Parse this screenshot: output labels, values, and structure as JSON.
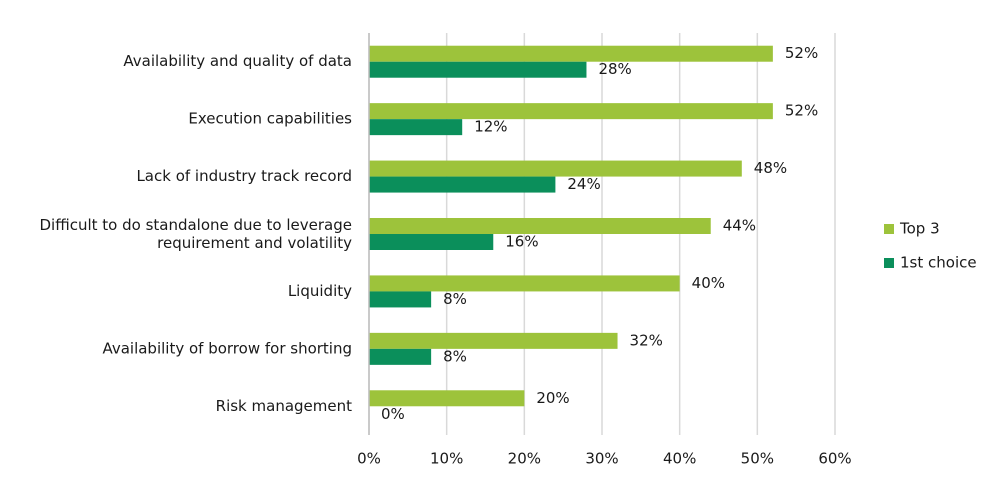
{
  "chart_data": {
    "type": "bar",
    "orientation": "horizontal",
    "categories": [
      "Availability and quality of data",
      "Execution capabilities",
      "Lack of industry track record",
      "Difficult to do standalone due to leverage\nrequirement and volatility",
      "Liquidity",
      "Availability of borrow for shorting",
      "Risk management"
    ],
    "series": [
      {
        "name": "Top 3",
        "color": "#9dc33b",
        "values": [
          52,
          52,
          48,
          44,
          40,
          32,
          20
        ],
        "value_labels": [
          "52%",
          "52%",
          "48%",
          "44%",
          "40%",
          "32%",
          "20%"
        ]
      },
      {
        "name": "1st choice",
        "color": "#0b8f5b",
        "values": [
          28,
          12,
          24,
          16,
          8,
          8,
          0
        ],
        "value_labels": [
          "28%",
          "12%",
          "24%",
          "16%",
          "8%",
          "8%",
          "0%"
        ]
      }
    ],
    "xlim": [
      0,
      60
    ],
    "xticks": [
      {
        "value": 0,
        "label": "0%"
      },
      {
        "value": 10,
        "label": "10%"
      },
      {
        "value": 20,
        "label": "20%"
      },
      {
        "value": 30,
        "label": "30%"
      },
      {
        "value": 40,
        "label": "40%"
      },
      {
        "value": 50,
        "label": "50%"
      },
      {
        "value": 60,
        "label": "60%"
      }
    ],
    "grid": true,
    "legend": "right"
  }
}
